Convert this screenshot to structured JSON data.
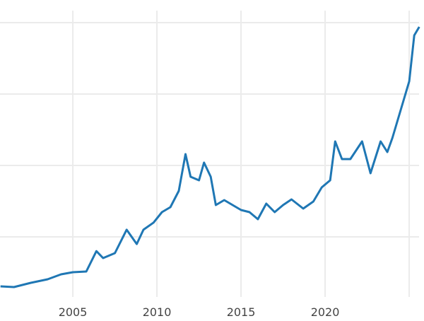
{
  "chart_data": {
    "type": "line",
    "title": "",
    "xlabel": "",
    "ylabel": "",
    "xlim": [
      2000.67,
      2025.6
    ],
    "ylim": [
      0,
      4300
    ],
    "grid": true,
    "x_ticks": [
      2005,
      2010,
      2015,
      2020,
      2025
    ],
    "x_tick_labels": [
      "2005",
      "2010",
      "2015",
      "2020",
      ""
    ],
    "y_gridlines": [
      1000,
      2000,
      3000,
      4000
    ],
    "line_color": "#1f77b4",
    "grid_color": "#ebebeb",
    "series": [
      {
        "x": [
          2000.7,
          2001.5,
          2002.5,
          2003.5,
          2004.3,
          2005,
          2005.8,
          2006.4,
          2006.8,
          2007.5,
          2008.2,
          2008.8,
          2009.2,
          2009.8,
          2010.3,
          2010.8,
          2011.3,
          2011.7,
          2012,
          2012.5,
          2012.8,
          2013.2,
          2013.5,
          2014,
          2014.5,
          2015,
          2015.5,
          2016,
          2016.5,
          2017,
          2017.5,
          2018,
          2018.7,
          2019.3,
          2019.8,
          2020.3,
          2020.6,
          2021,
          2021.5,
          2022.2,
          2022.7,
          2023.3,
          2023.7,
          2024,
          2024.5,
          2025,
          2025.3,
          2025.6
        ],
        "y": [
          307,
          297,
          356,
          406,
          475,
          505,
          515,
          800,
          703,
          772,
          1100,
          900,
          1100,
          1200,
          1347,
          1416,
          1644,
          2158,
          1842,
          1792,
          2040,
          1842,
          1446,
          1515,
          1446,
          1376,
          1347,
          1248,
          1465,
          1347,
          1446,
          1525,
          1396,
          1495,
          1693,
          1792,
          2337,
          2089,
          2089,
          2337,
          1891,
          2337,
          2188,
          2386,
          2782,
          3178,
          3822,
          3941
        ]
      }
    ]
  }
}
